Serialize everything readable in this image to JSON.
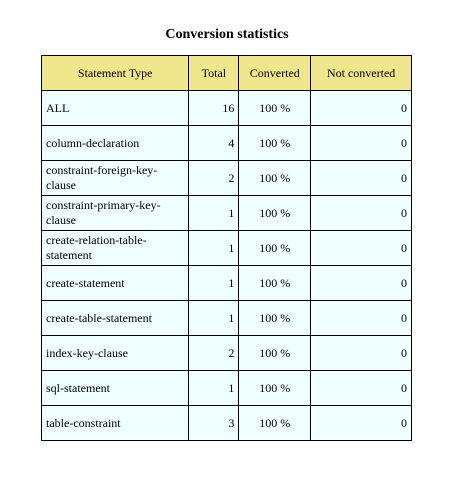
{
  "title": "Conversion statistics",
  "table": {
    "headers": [
      "Statement Type",
      "Total",
      "Converted",
      "Not converted"
    ],
    "rows": [
      {
        "type": "ALL",
        "total": "16",
        "converted": "100 %",
        "not_converted": "0"
      },
      {
        "type": "column-declaration",
        "total": "4",
        "converted": "100 %",
        "not_converted": "0"
      },
      {
        "type": "constraint-foreign-key-clause",
        "total": "2",
        "converted": "100 %",
        "not_converted": "0"
      },
      {
        "type": "constraint-primary-key-clause",
        "total": "1",
        "converted": "100 %",
        "not_converted": "0"
      },
      {
        "type": "create-relation-table-statement",
        "total": "1",
        "converted": "100 %",
        "not_converted": "0"
      },
      {
        "type": "create-statement",
        "total": "1",
        "converted": "100 %",
        "not_converted": "0"
      },
      {
        "type": "create-table-statement",
        "total": "1",
        "converted": "100 %",
        "not_converted": "0"
      },
      {
        "type": "index-key-clause",
        "total": "2",
        "converted": "100 %",
        "not_converted": "0"
      },
      {
        "type": "sql-statement",
        "total": "1",
        "converted": "100 %",
        "not_converted": "0"
      },
      {
        "type": "table-constraint",
        "total": "3",
        "converted": "100 %",
        "not_converted": "0"
      }
    ]
  },
  "colors": {
    "header_bg": "#f0e68c",
    "cell_bg": "#f0ffff",
    "border": "#000000"
  }
}
